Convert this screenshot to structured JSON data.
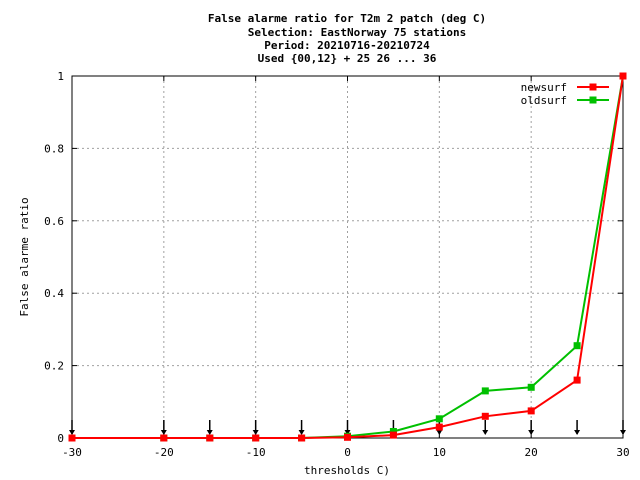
{
  "chart_data": {
    "type": "line",
    "title_lines": [
      "False alarme ratio  for T2m 2 patch (deg C)",
      "Selection: EastNorway     75 stations",
      "Period: 20210716-20210724",
      "Used {00,12} + 25 26 ... 36"
    ],
    "xlabel": "thresholds C)",
    "ylabel": "False alarme ratio",
    "xlim": [
      -30,
      30
    ],
    "ylim": [
      0,
      1
    ],
    "x_ticks": [
      "-30",
      "-20",
      "-10",
      "0",
      "10",
      "20",
      "30"
    ],
    "y_ticks": [
      "0",
      "0.2",
      "0.4",
      "0.6",
      "0.8",
      "1"
    ],
    "x_tick_values": [
      -30,
      -20,
      -10,
      0,
      10,
      20,
      30
    ],
    "y_tick_values": [
      0,
      0.2,
      0.4,
      0.6,
      0.8,
      1
    ],
    "grid": true,
    "legend_position": "top-right",
    "series": [
      {
        "name": "newsurf",
        "color": "#ff0000",
        "x": [
          -30,
          -20,
          -15,
          -10,
          -5,
          0,
          5,
          10,
          15,
          20,
          25,
          30
        ],
        "y": [
          0,
          0,
          0,
          0,
          0,
          0.002,
          0.008,
          0.03,
          0.06,
          0.075,
          0.16,
          1.0
        ]
      },
      {
        "name": "oldsurf",
        "color": "#00c000",
        "x": [
          -30,
          -20,
          -15,
          -10,
          -5,
          0,
          5,
          10,
          15,
          20,
          25,
          30
        ],
        "y": [
          0,
          0,
          0,
          0,
          0,
          0.005,
          0.018,
          0.053,
          0.13,
          0.14,
          0.255,
          1.0
        ]
      }
    ],
    "arrow_thresholds": [
      -30,
      -20,
      -15,
      -10,
      -5,
      0,
      5,
      10,
      15,
      20,
      25,
      30
    ]
  }
}
